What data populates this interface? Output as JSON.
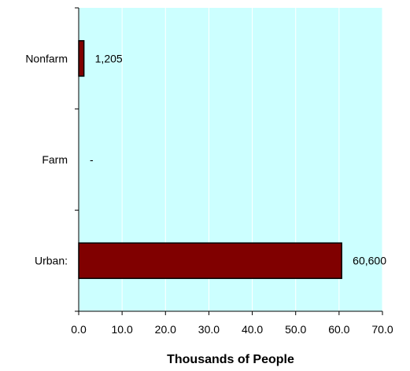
{
  "chart_data": {
    "type": "bar",
    "orientation": "horizontal",
    "title": "",
    "xlabel": "Thousands of People",
    "ylabel": "",
    "categories": [
      "Urban:",
      "Farm",
      "Nonfarm"
    ],
    "values": [
      60.6,
      0,
      1.205
    ],
    "data_labels": [
      "60,600",
      "-",
      "1,205"
    ],
    "xlim": [
      0,
      70
    ],
    "xticks": [
      "0.0",
      "10.0",
      "20.0",
      "30.0",
      "40.0",
      "50.0",
      "60.0",
      "70.0"
    ],
    "grid": "vertical",
    "legend": "none",
    "colors": {
      "plot_background": "#ccffff",
      "bar_fill": "#800000",
      "bar_stroke": "#000000",
      "gridline": "#ffffff"
    }
  }
}
